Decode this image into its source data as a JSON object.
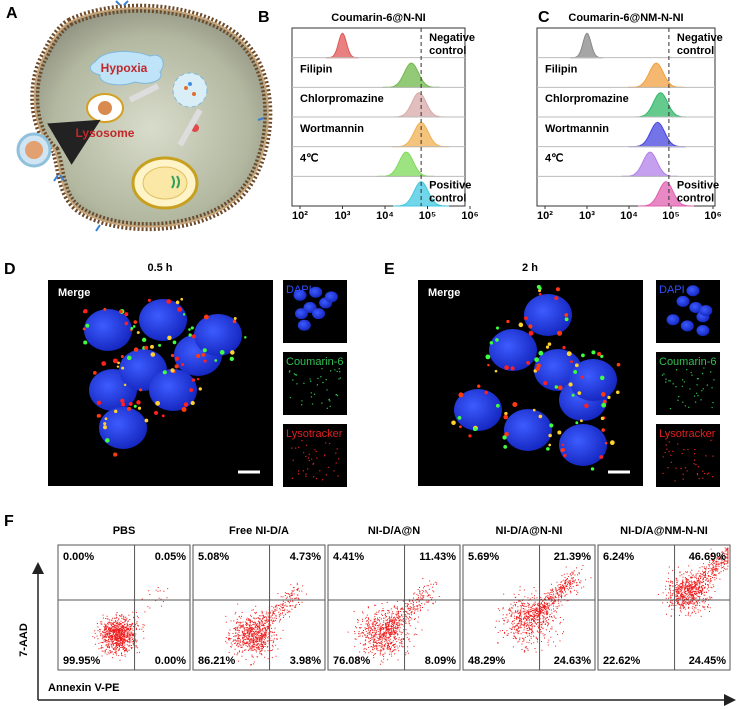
{
  "panels": {
    "a": {
      "label": "A",
      "texts": [
        "Hypoxia",
        "Lysosome"
      ]
    },
    "b": {
      "label": "B",
      "title": "Coumarin-6@N-NI",
      "rows": [
        "Negative control",
        "Filipin",
        "Chlorpromazine",
        "Wortmannin",
        "4℃",
        "Positive control"
      ],
      "x_ticks": [
        "10²",
        "10³",
        "10⁴",
        "10⁵",
        "10⁶"
      ]
    },
    "c": {
      "label": "C",
      "title": "Coumarin-6@NM-N-NI",
      "rows": [
        "Negative control",
        "Filipin",
        "Chlorpromazine",
        "Wortmannin",
        "4℃",
        "Positive control"
      ],
      "x_ticks": [
        "10²",
        "10³",
        "10⁴",
        "10⁵",
        "10⁶"
      ]
    },
    "d": {
      "label": "D",
      "time": "0.5 h",
      "merge": "Merge",
      "channels": [
        "DAPI",
        "Coumarin-6",
        "Lysotracker"
      ]
    },
    "e": {
      "label": "E",
      "time": "2 h",
      "merge": "Merge",
      "channels": [
        "DAPI",
        "Coumarin-6",
        "Lysotracker"
      ]
    },
    "f": {
      "label": "F",
      "y_axis": "7-AAD",
      "x_axis": "Annexin V-PE",
      "groups": [
        {
          "name": "PBS",
          "quadrants": [
            "0.00%",
            "0.05%",
            "99.95%",
            "0.00%"
          ]
        },
        {
          "name": "Free NI-D/A",
          "quadrants": [
            "5.08%",
            "4.73%",
            "86.21%",
            "3.98%"
          ]
        },
        {
          "name": "NI-D/A@N",
          "quadrants": [
            "4.41%",
            "11.43%",
            "76.08%",
            "8.09%"
          ]
        },
        {
          "name": "NI-D/A@N-NI",
          "quadrants": [
            "5.69%",
            "21.39%",
            "48.29%",
            "24.63%"
          ]
        },
        {
          "name": "NI-D/A@NM-N-NI",
          "quadrants": [
            "6.24%",
            "46.69%",
            "22.62%",
            "24.45%"
          ]
        }
      ]
    }
  }
}
